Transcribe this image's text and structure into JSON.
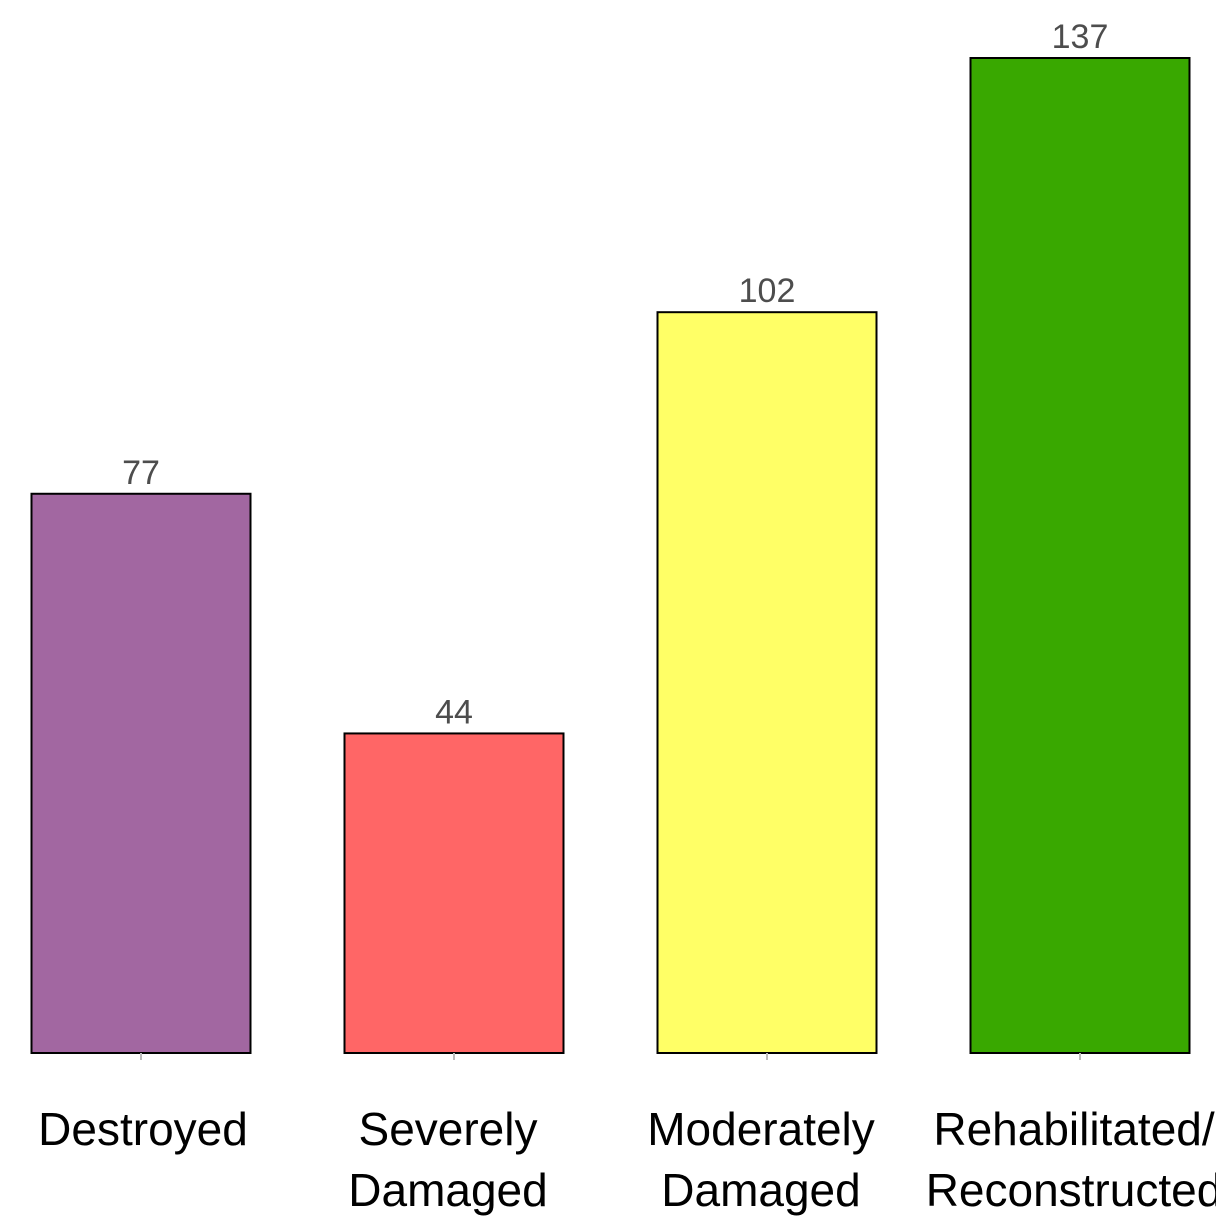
{
  "chart_data": {
    "type": "bar",
    "categories": [
      "Destroyed",
      "Severely Damaged",
      "Moderately Damaged",
      "Rehabilitated/ Reconstructed"
    ],
    "category_lines": [
      [
        "Destroyed"
      ],
      [
        "Severely",
        "Damaged"
      ],
      [
        "Moderately",
        "Damaged"
      ],
      [
        "Rehabilitated/",
        "Reconstructed"
      ]
    ],
    "values": [
      77,
      44,
      102,
      137
    ],
    "colors": [
      "#A267A1",
      "#FF6666",
      "#FFFF66",
      "#39A800"
    ],
    "title": "",
    "xlabel": "",
    "ylabel": "",
    "ylim": [
      0,
      137
    ],
    "grid": false,
    "legend": "none"
  }
}
